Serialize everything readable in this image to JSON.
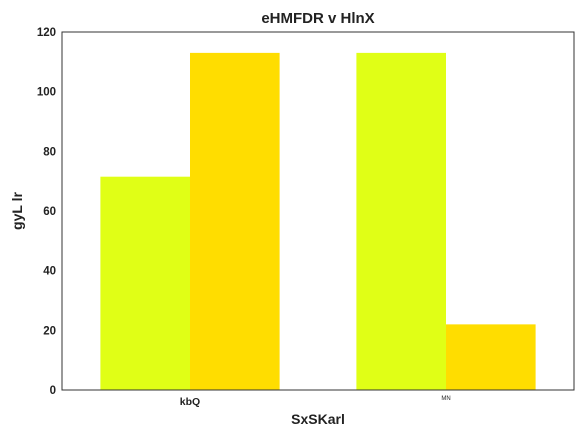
{
  "chart_data": {
    "type": "bar",
    "title": "eHMFDR v HlnX",
    "xlabel": "SxSKarl",
    "ylabel": "gyL lr",
    "categories": [
      "kbQ",
      "MN"
    ],
    "series": [
      {
        "values": [
          71.5,
          113
        ],
        "color": "#e0ff16"
      },
      {
        "values": [
          113,
          22
        ],
        "color": "#ffdd00"
      }
    ],
    "ylim": [
      0,
      120
    ],
    "yticks": [
      0,
      20,
      40,
      60,
      80,
      100,
      120
    ],
    "grid": false,
    "legend": "none"
  }
}
